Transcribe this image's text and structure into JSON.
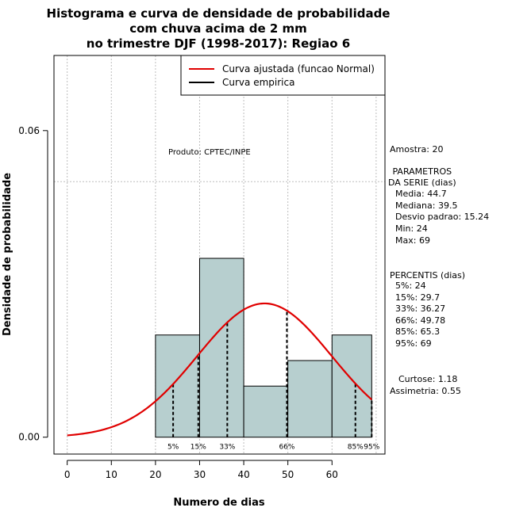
{
  "chart_data": {
    "type": "histogram",
    "title_lines": [
      "Histograma e curva de densidade de probabilidade",
      "com chuva acima de 2 mm",
      "no trimestre DJF (1998-2017): Regiao 6"
    ],
    "xlabel": "Numero de dias",
    "ylabel": "Densidade de probabilidade",
    "xlim": [
      -3,
      72
    ],
    "ylim": [
      -0.0033,
      0.0747
    ],
    "x_ticks": [
      0,
      10,
      20,
      30,
      40,
      50,
      60
    ],
    "y_ticks": [
      0.0,
      0.06
    ],
    "y_tick_labels": [
      "0.00",
      "0.06"
    ],
    "v_grid": [
      0,
      10,
      20,
      30,
      40,
      50,
      60,
      70
    ],
    "h_grid": [
      0.05
    ],
    "bins": [
      {
        "from": 20,
        "to": 30,
        "density": 0.02
      },
      {
        "from": 30,
        "to": 40,
        "density": 0.035
      },
      {
        "from": 40,
        "to": 50,
        "density": 0.01
      },
      {
        "from": 50,
        "to": 60,
        "density": 0.015
      },
      {
        "from": 60,
        "to": 69,
        "density": 0.02
      }
    ],
    "normal_fit": {
      "mean": 44.7,
      "sd": 15.24,
      "from": 0,
      "to": 69,
      "color": "#e00000"
    },
    "bar_color": "#b7cfcf",
    "percentile_lines": [
      {
        "label": "5%",
        "x": 24
      },
      {
        "label": "15%",
        "x": 29.7
      },
      {
        "label": "33%",
        "x": 36.27
      },
      {
        "label": "66%",
        "x": 49.78
      },
      {
        "label": "85%",
        "x": 65.3
      },
      {
        "label": "95%",
        "x": 69
      }
    ],
    "legend": [
      {
        "label": "Curva ajustada (funcao Normal)",
        "color": "#e00000"
      },
      {
        "label": "Curva empirica",
        "color": "#000000"
      }
    ],
    "annotation": "Produto: CPTEC/INPE"
  },
  "side_panel": {
    "amostra": "Amostra: 20",
    "params_title_1": " PARAMETROS",
    "params_title_2": "DA SERIE (dias)",
    "media": "Media: 44.7",
    "mediana": "Mediana: 39.5",
    "desvio": "Desvio padrao: 15.24",
    "min": "Min: 24",
    "max": "Max: 69",
    "percentis_title": "PERCENTIS (dias)",
    "p5": "5%: 24",
    "p15": "15%: 29.7",
    "p33": "33%: 36.27",
    "p66": "66%: 49.78",
    "p85": "85%: 65.3",
    "p95": "95%: 69",
    "curtose": "Curtose: 1.18",
    "assimetria": "Assimetria: 0.55"
  }
}
